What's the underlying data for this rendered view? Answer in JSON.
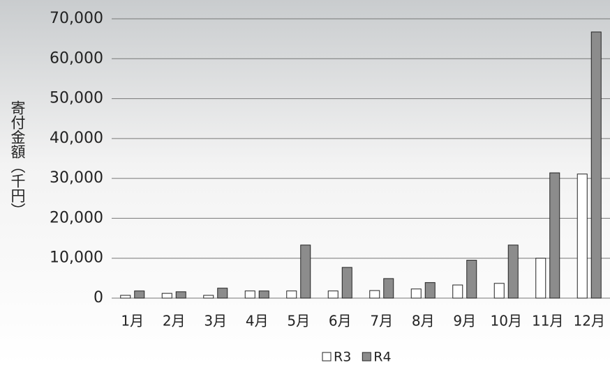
{
  "chart_data": {
    "type": "bar",
    "y_label": "寄付金額（千円）",
    "categories": [
      "1月",
      "2月",
      "3月",
      "4月",
      "5月",
      "6月",
      "7月",
      "8月",
      "9月",
      "10月",
      "11月",
      "12月"
    ],
    "series": [
      {
        "name": "R3",
        "color": "#ffffff",
        "values": [
          700,
          1200,
          700,
          1800,
          1800,
          1800,
          1900,
          2300,
          3300,
          3700,
          10000,
          31100
        ]
      },
      {
        "name": "R4",
        "color": "#8c8c8c",
        "values": [
          1800,
          1600,
          2500,
          1800,
          13300,
          7700,
          4900,
          3900,
          9500,
          13300,
          31400,
          66700
        ]
      }
    ],
    "ylim": [
      0,
      70000
    ],
    "yticks": [
      0,
      {
        "value": 10000,
        "label": "10,000"
      },
      {
        "value": 20000,
        "label": "20,000"
      },
      {
        "value": 30000,
        "label": "30,000"
      },
      {
        "value": 40000,
        "label": "40,000"
      },
      {
        "value": 50000,
        "label": "50,000"
      },
      {
        "value": 60000,
        "label": "60,000"
      },
      {
        "value": 70000,
        "label": "70,000"
      }
    ],
    "grid": true
  }
}
